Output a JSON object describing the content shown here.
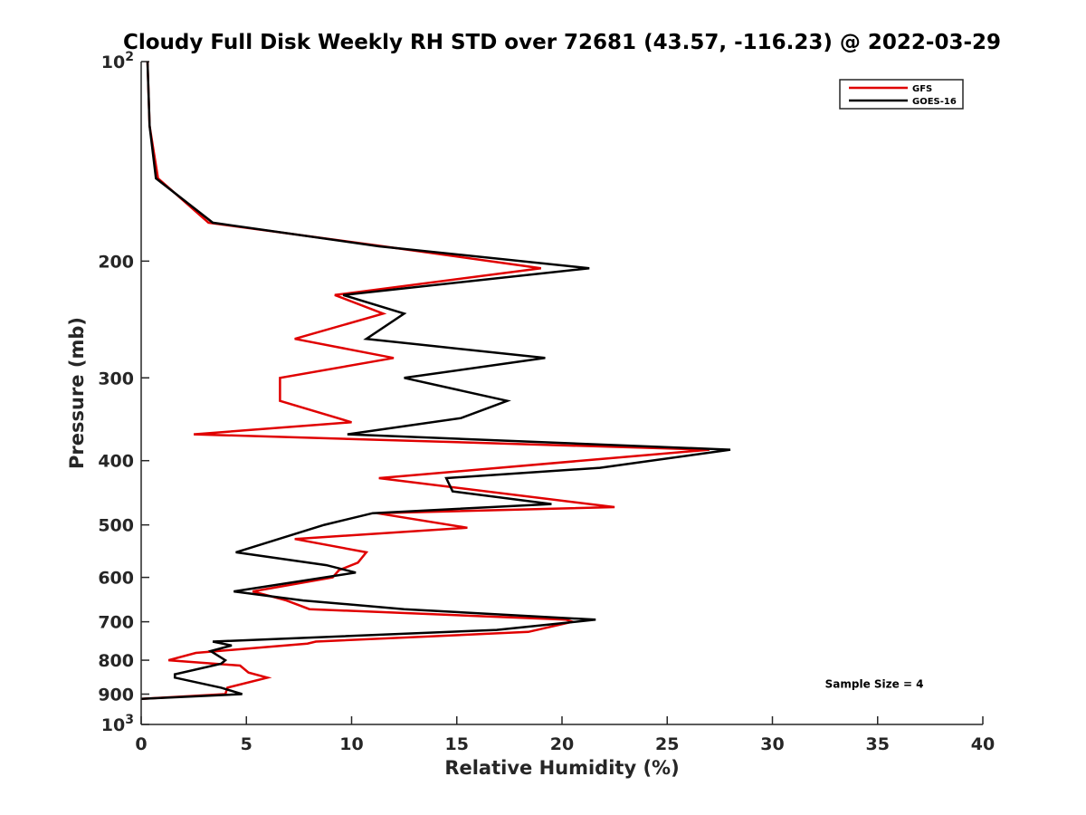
{
  "chart_data": {
    "type": "line",
    "title": "Cloudy Full Disk Weekly RH STD over 72681 (43.57, -116.23) @ 2022-03-29",
    "xlabel": "Relative Humidity (%)",
    "ylabel": "Pressure (mb)",
    "xlim": [
      0,
      40
    ],
    "ylim": [
      100,
      1000
    ],
    "yscale": "log",
    "y_reversed": true,
    "grid": false,
    "legend_position": "top-right",
    "x_ticks": [
      "0",
      "5",
      "10",
      "15",
      "20",
      "25",
      "30",
      "35",
      "40"
    ],
    "x_tick_values": [
      0,
      5,
      10,
      15,
      20,
      25,
      30,
      35,
      40
    ],
    "y_ticks": [
      {
        "value": 100,
        "base": "10",
        "exp": "2"
      },
      {
        "value": 200,
        "label": "200"
      },
      {
        "value": 300,
        "label": "300"
      },
      {
        "value": 400,
        "label": "400"
      },
      {
        "value": 500,
        "label": "500"
      },
      {
        "value": 600,
        "label": "600"
      },
      {
        "value": 700,
        "label": "700"
      },
      {
        "value": 800,
        "label": "800"
      },
      {
        "value": 900,
        "label": "900"
      },
      {
        "value": 1000,
        "base": "10",
        "exp": "3"
      }
    ],
    "series": [
      {
        "name": "GFS",
        "color": "#e00000",
        "points": [
          [
            0.3,
            100
          ],
          [
            0.4,
            125
          ],
          [
            0.8,
            150
          ],
          [
            3.2,
            175
          ],
          [
            11.5,
            190
          ],
          [
            19,
            205
          ],
          [
            9.2,
            225
          ],
          [
            11.5,
            240
          ],
          [
            7.3,
            262
          ],
          [
            12,
            280
          ],
          [
            6.6,
            300
          ],
          [
            6.6,
            325
          ],
          [
            10,
            350
          ],
          [
            2.5,
            365
          ],
          [
            27,
            385
          ],
          [
            11.3,
            425
          ],
          [
            22.5,
            470
          ],
          [
            11.2,
            480
          ],
          [
            15.5,
            505
          ],
          [
            7.3,
            525
          ],
          [
            10.7,
            550
          ],
          [
            10.3,
            570
          ],
          [
            9.4,
            585
          ],
          [
            9.1,
            600
          ],
          [
            5.3,
            630
          ],
          [
            6.9,
            650
          ],
          [
            8,
            670
          ],
          [
            20.2,
            695
          ],
          [
            20.5,
            700
          ],
          [
            18.4,
            725
          ],
          [
            8.3,
            750
          ],
          [
            7.9,
            755
          ],
          [
            2.6,
            780
          ],
          [
            1.3,
            800
          ],
          [
            4.7,
            815
          ],
          [
            5.1,
            835
          ],
          [
            6.0,
            850
          ],
          [
            4.1,
            880
          ],
          [
            4.0,
            900
          ],
          [
            0,
            915
          ]
        ]
      },
      {
        "name": "GOES-16",
        "color": "#000000",
        "points": [
          [
            0.3,
            100
          ],
          [
            0.4,
            125
          ],
          [
            0.7,
            150
          ],
          [
            3.4,
            175
          ],
          [
            11.3,
            190
          ],
          [
            21.3,
            205
          ],
          [
            9.6,
            225
          ],
          [
            12.5,
            240
          ],
          [
            10.7,
            262
          ],
          [
            19.2,
            280
          ],
          [
            12.5,
            300
          ],
          [
            17.4,
            325
          ],
          [
            15.2,
            345
          ],
          [
            9.8,
            365
          ],
          [
            28,
            385
          ],
          [
            21.8,
            410
          ],
          [
            14.5,
            425
          ],
          [
            14.8,
            445
          ],
          [
            19.5,
            465
          ],
          [
            11,
            480
          ],
          [
            8.7,
            500
          ],
          [
            4.5,
            550
          ],
          [
            8.8,
            575
          ],
          [
            10.2,
            590
          ],
          [
            4.4,
            630
          ],
          [
            7.7,
            650
          ],
          [
            12.5,
            670
          ],
          [
            21.6,
            695
          ],
          [
            16.9,
            720
          ],
          [
            3.4,
            750
          ],
          [
            4.3,
            760
          ],
          [
            3.3,
            775
          ],
          [
            4.0,
            800
          ],
          [
            3.8,
            810
          ],
          [
            1.6,
            840
          ],
          [
            1.6,
            850
          ],
          [
            3.8,
            880
          ],
          [
            4.8,
            900
          ],
          [
            0,
            915
          ]
        ]
      }
    ],
    "annotations": [
      {
        "text": "Sample Size = 4",
        "x": 32.5,
        "y": 880
      }
    ]
  }
}
